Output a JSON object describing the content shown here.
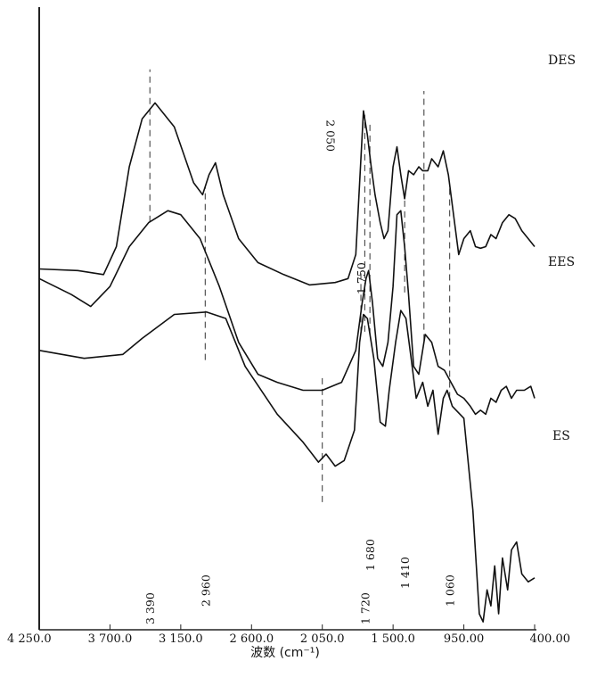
{
  "chart_data": {
    "type": "line",
    "xlabel": "波数 (cm⁻¹)",
    "xlim": [
      4250,
      400
    ],
    "x_tick_labels": [
      {
        "value": 4250,
        "label": "4 250.0"
      },
      {
        "value": 3700,
        "label": "3 700.0"
      },
      {
        "value": 3150,
        "label": "3 150.0"
      },
      {
        "value": 2600,
        "label": "2 600.0"
      },
      {
        "value": 2050,
        "label": "2 050.0"
      },
      {
        "value": 1500,
        "label": "1 500.0"
      },
      {
        "value": 950,
        "label": "950.00"
      },
      {
        "value": 400,
        "label": "400.00"
      }
    ],
    "series": [
      {
        "name": "DES",
        "points": [
          [
            4250,
            350
          ],
          [
            3900,
            340
          ],
          [
            3600,
            345
          ],
          [
            3450,
            365
          ],
          [
            3200,
            395
          ],
          [
            2950,
            398
          ],
          [
            2800,
            390
          ],
          [
            2650,
            330
          ],
          [
            2400,
            270
          ],
          [
            2200,
            235
          ],
          [
            2080,
            210
          ],
          [
            2020,
            220
          ],
          [
            1950,
            205
          ],
          [
            1880,
            212
          ],
          [
            1800,
            250
          ],
          [
            1760,
            360
          ],
          [
            1730,
            395
          ],
          [
            1700,
            390
          ],
          [
            1650,
            340
          ],
          [
            1600,
            260
          ],
          [
            1560,
            255
          ],
          [
            1530,
            300
          ],
          [
            1480,
            360
          ],
          [
            1440,
            400
          ],
          [
            1400,
            390
          ],
          [
            1360,
            340
          ],
          [
            1320,
            290
          ],
          [
            1270,
            310
          ],
          [
            1230,
            280
          ],
          [
            1190,
            300
          ],
          [
            1150,
            245
          ],
          [
            1110,
            290
          ],
          [
            1080,
            300
          ],
          [
            1040,
            280
          ],
          [
            950,
            265
          ],
          [
            880,
            150
          ],
          [
            830,
            20
          ],
          [
            800,
            10
          ],
          [
            770,
            50
          ],
          [
            740,
            30
          ],
          [
            710,
            80
          ],
          [
            680,
            20
          ],
          [
            650,
            90
          ],
          [
            610,
            50
          ],
          [
            580,
            100
          ],
          [
            540,
            110
          ],
          [
            500,
            70
          ],
          [
            450,
            60
          ],
          [
            400,
            65
          ]
        ]
      },
      {
        "name": "EES",
        "points": [
          [
            4250,
            440
          ],
          [
            4000,
            420
          ],
          [
            3850,
            405
          ],
          [
            3700,
            430
          ],
          [
            3550,
            480
          ],
          [
            3400,
            510
          ],
          [
            3250,
            525
          ],
          [
            3150,
            520
          ],
          [
            3000,
            490
          ],
          [
            2850,
            430
          ],
          [
            2700,
            360
          ],
          [
            2550,
            320
          ],
          [
            2400,
            310
          ],
          [
            2200,
            300
          ],
          [
            2050,
            300
          ],
          [
            1900,
            310
          ],
          [
            1790,
            350
          ],
          [
            1740,
            410
          ],
          [
            1710,
            440
          ],
          [
            1690,
            450
          ],
          [
            1660,
            410
          ],
          [
            1620,
            340
          ],
          [
            1580,
            330
          ],
          [
            1540,
            360
          ],
          [
            1500,
            430
          ],
          [
            1470,
            520
          ],
          [
            1440,
            525
          ],
          [
            1410,
            480
          ],
          [
            1380,
            420
          ],
          [
            1340,
            330
          ],
          [
            1300,
            320
          ],
          [
            1250,
            370
          ],
          [
            1200,
            360
          ],
          [
            1150,
            330
          ],
          [
            1100,
            325
          ],
          [
            1050,
            310
          ],
          [
            1000,
            295
          ],
          [
            950,
            290
          ],
          [
            900,
            280
          ],
          [
            860,
            270
          ],
          [
            820,
            275
          ],
          [
            780,
            270
          ],
          [
            740,
            290
          ],
          [
            700,
            285
          ],
          [
            660,
            300
          ],
          [
            620,
            305
          ],
          [
            580,
            290
          ],
          [
            540,
            300
          ],
          [
            480,
            300
          ],
          [
            430,
            305
          ],
          [
            400,
            290
          ]
        ]
      },
      {
        "name": "ES",
        "points": [
          [
            4250,
            452
          ],
          [
            3950,
            450
          ],
          [
            3750,
            445
          ],
          [
            3650,
            480
          ],
          [
            3550,
            580
          ],
          [
            3450,
            640
          ],
          [
            3350,
            660
          ],
          [
            3200,
            630
          ],
          [
            3050,
            560
          ],
          [
            2980,
            545
          ],
          [
            2930,
            570
          ],
          [
            2880,
            585
          ],
          [
            2820,
            545
          ],
          [
            2700,
            490
          ],
          [
            2550,
            460
          ],
          [
            2350,
            445
          ],
          [
            2150,
            432
          ],
          [
            1950,
            435
          ],
          [
            1850,
            440
          ],
          [
            1790,
            470
          ],
          [
            1760,
            560
          ],
          [
            1730,
            650
          ],
          [
            1700,
            620
          ],
          [
            1670,
            580
          ],
          [
            1640,
            545
          ],
          [
            1600,
            510
          ],
          [
            1570,
            490
          ],
          [
            1540,
            500
          ],
          [
            1500,
            580
          ],
          [
            1470,
            605
          ],
          [
            1440,
            570
          ],
          [
            1410,
            540
          ],
          [
            1380,
            575
          ],
          [
            1340,
            570
          ],
          [
            1300,
            580
          ],
          [
            1270,
            575
          ],
          [
            1230,
            575
          ],
          [
            1200,
            590
          ],
          [
            1150,
            580
          ],
          [
            1110,
            600
          ],
          [
            1070,
            570
          ],
          [
            1030,
            520
          ],
          [
            990,
            470
          ],
          [
            950,
            490
          ],
          [
            900,
            500
          ],
          [
            860,
            480
          ],
          [
            820,
            478
          ],
          [
            780,
            480
          ],
          [
            740,
            495
          ],
          [
            700,
            490
          ],
          [
            650,
            510
          ],
          [
            600,
            520
          ],
          [
            550,
            515
          ],
          [
            500,
            500
          ],
          [
            450,
            490
          ],
          [
            400,
            480
          ]
        ]
      }
    ],
    "series_labels": [
      "DES",
      "EES",
      "ES"
    ],
    "peak_labels": [
      {
        "x": 3390,
        "label": "3 390"
      },
      {
        "x": 2960,
        "label": "2 960"
      },
      {
        "x": 2050,
        "label": "2 050"
      },
      {
        "x": 1750,
        "label": "1 750"
      },
      {
        "x": 1720,
        "label": "1 720"
      },
      {
        "x": 1680,
        "label": "1 680"
      },
      {
        "x": 1410,
        "label": "1 410"
      },
      {
        "x": 1060,
        "label": "1 060"
      }
    ],
    "ylim": [
      780,
      0
    ],
    "grid": false,
    "legend": "none"
  }
}
